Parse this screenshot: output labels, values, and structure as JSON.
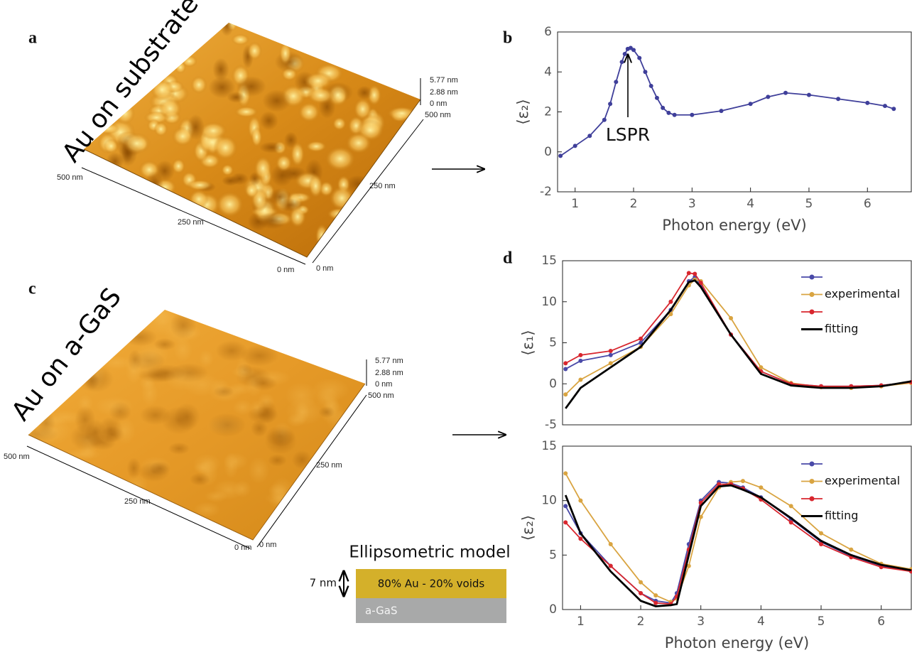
{
  "panel_labels": [
    "a",
    "b",
    "c",
    "d"
  ],
  "afm": [
    {
      "title": "Au on substrate",
      "height_labels": [
        "5.77 nm",
        "2.88 nm",
        "0 nm"
      ],
      "axis_labels": [
        "500 nm",
        "500 nm",
        "250 nm",
        "0 nm",
        "250 nm",
        "0 nm"
      ]
    },
    {
      "title": "Au on a-GaS",
      "height_labels": [
        "5.77 nm",
        "2.88 nm",
        "0 nm"
      ],
      "axis_labels": [
        "500 nm",
        "500 nm",
        "250 nm",
        "0 nm",
        "250 nm",
        "0 nm"
      ]
    }
  ],
  "model": {
    "title": "Ellipsometric model",
    "thickness": "7 nm",
    "layers": [
      "80% Au - 20% voids",
      "a-GaS"
    ]
  },
  "chart_data": [
    {
      "type": "line",
      "xlabel": "Photon energy (eV)",
      "ylabel": "⟨ε₂⟩",
      "annotation": "LSPR",
      "x": [
        0.75,
        1.0,
        1.25,
        1.5,
        1.6,
        1.7,
        1.8,
        1.85,
        1.9,
        1.95,
        2.0,
        2.1,
        2.2,
        2.3,
        2.4,
        2.5,
        2.6,
        2.7,
        3.0,
        3.5,
        4.0,
        4.3,
        4.6,
        5.0,
        5.5,
        6.0,
        6.3,
        6.45
      ],
      "series": [
        {
          "color": "#3f3f9a",
          "marker": "o",
          "values": [
            -0.2,
            0.3,
            0.8,
            1.6,
            2.4,
            3.5,
            4.5,
            4.9,
            5.15,
            5.2,
            5.1,
            4.7,
            4.0,
            3.3,
            2.7,
            2.2,
            1.95,
            1.85,
            1.85,
            2.05,
            2.4,
            2.75,
            2.95,
            2.85,
            2.65,
            2.45,
            2.3,
            2.15
          ]
        }
      ],
      "xlim": [
        0.7,
        6.75
      ],
      "ylim": [
        -2,
        6
      ],
      "xticks": [
        1,
        2,
        3,
        4,
        5,
        6
      ],
      "yticks": [
        -2,
        0,
        2,
        4,
        6
      ]
    },
    {
      "type": "line",
      "ylabel": "⟨ε₁⟩",
      "x": [
        0.75,
        1.0,
        1.5,
        2.0,
        2.5,
        2.8,
        2.9,
        3.0,
        3.5,
        4.0,
        4.5,
        5.0,
        5.5,
        6.0,
        6.5
      ],
      "series": [
        {
          "color": "#4a4aa8",
          "marker": "o",
          "values": [
            1.8,
            2.8,
            3.5,
            5.0,
            9.0,
            12.5,
            13.0,
            12.0,
            6.0,
            1.5,
            0,
            -0.3,
            -0.3,
            -0.2,
            0.2
          ]
        },
        {
          "name": "experimental",
          "color": "#d9a441",
          "marker": "o",
          "values": [
            -1.3,
            0.5,
            2.5,
            4.5,
            8.5,
            12.0,
            12.7,
            12.5,
            8.0,
            2.0,
            0.1,
            -0.4,
            -0.5,
            -0.3,
            0.1
          ]
        },
        {
          "color": "#d8262e",
          "marker": "o",
          "values": [
            2.5,
            3.5,
            4.0,
            5.5,
            10.0,
            13.5,
            13.4,
            12.3,
            6.0,
            1.5,
            0,
            -0.3,
            -0.3,
            -0.2,
            0.2
          ]
        },
        {
          "name": "fitting",
          "color": "#000000",
          "values": [
            -3.0,
            -0.5,
            2.0,
            4.5,
            9.0,
            12.4,
            12.6,
            11.8,
            6.0,
            1.2,
            -0.2,
            -0.5,
            -0.5,
            -0.3,
            0.3
          ]
        }
      ],
      "xlim": [
        0.7,
        6.5
      ],
      "ylim": [
        -5,
        15
      ],
      "yticks": [
        -5,
        0,
        5,
        10,
        15
      ]
    },
    {
      "type": "line",
      "xlabel": "Photon energy (eV)",
      "ylabel": "⟨ε₂⟩",
      "x": [
        0.75,
        1.0,
        1.5,
        2.0,
        2.25,
        2.5,
        2.6,
        2.8,
        3.0,
        3.3,
        3.5,
        3.7,
        4.0,
        4.5,
        5.0,
        5.5,
        6.0,
        6.5
      ],
      "series": [
        {
          "color": "#4a4aa8",
          "marker": "o",
          "values": [
            9.5,
            7.0,
            4.0,
            1.5,
            0.8,
            0.6,
            1.5,
            6.0,
            10.0,
            11.7,
            11.6,
            11.2,
            10.3,
            8.3,
            6.2,
            4.9,
            4.0,
            3.5
          ]
        },
        {
          "name": "experimental",
          "color": "#d9a441",
          "marker": "o",
          "values": [
            12.5,
            10.0,
            6.0,
            2.5,
            1.3,
            0.7,
            1.0,
            4.0,
            8.5,
            11.2,
            11.7,
            11.8,
            11.2,
            9.5,
            7.0,
            5.5,
            4.2,
            3.7
          ]
        },
        {
          "color": "#d8262e",
          "marker": "o",
          "values": [
            8.0,
            6.5,
            4.0,
            1.5,
            0.6,
            0.5,
            1.2,
            5.5,
            9.8,
            11.5,
            11.5,
            11.1,
            10.1,
            8.0,
            6.0,
            4.8,
            3.9,
            3.5
          ]
        },
        {
          "name": "fitting",
          "color": "#000000",
          "values": [
            10.5,
            7.0,
            3.5,
            0.8,
            0.3,
            0.4,
            0.5,
            5.0,
            9.5,
            11.3,
            11.4,
            11.0,
            10.3,
            8.4,
            6.3,
            5.0,
            4.1,
            3.6
          ]
        }
      ],
      "xlim": [
        0.7,
        6.5
      ],
      "ylim": [
        0,
        15
      ],
      "xticks": [
        1,
        2,
        3,
        4,
        5,
        6
      ],
      "yticks": [
        0,
        5,
        10,
        15
      ]
    }
  ]
}
